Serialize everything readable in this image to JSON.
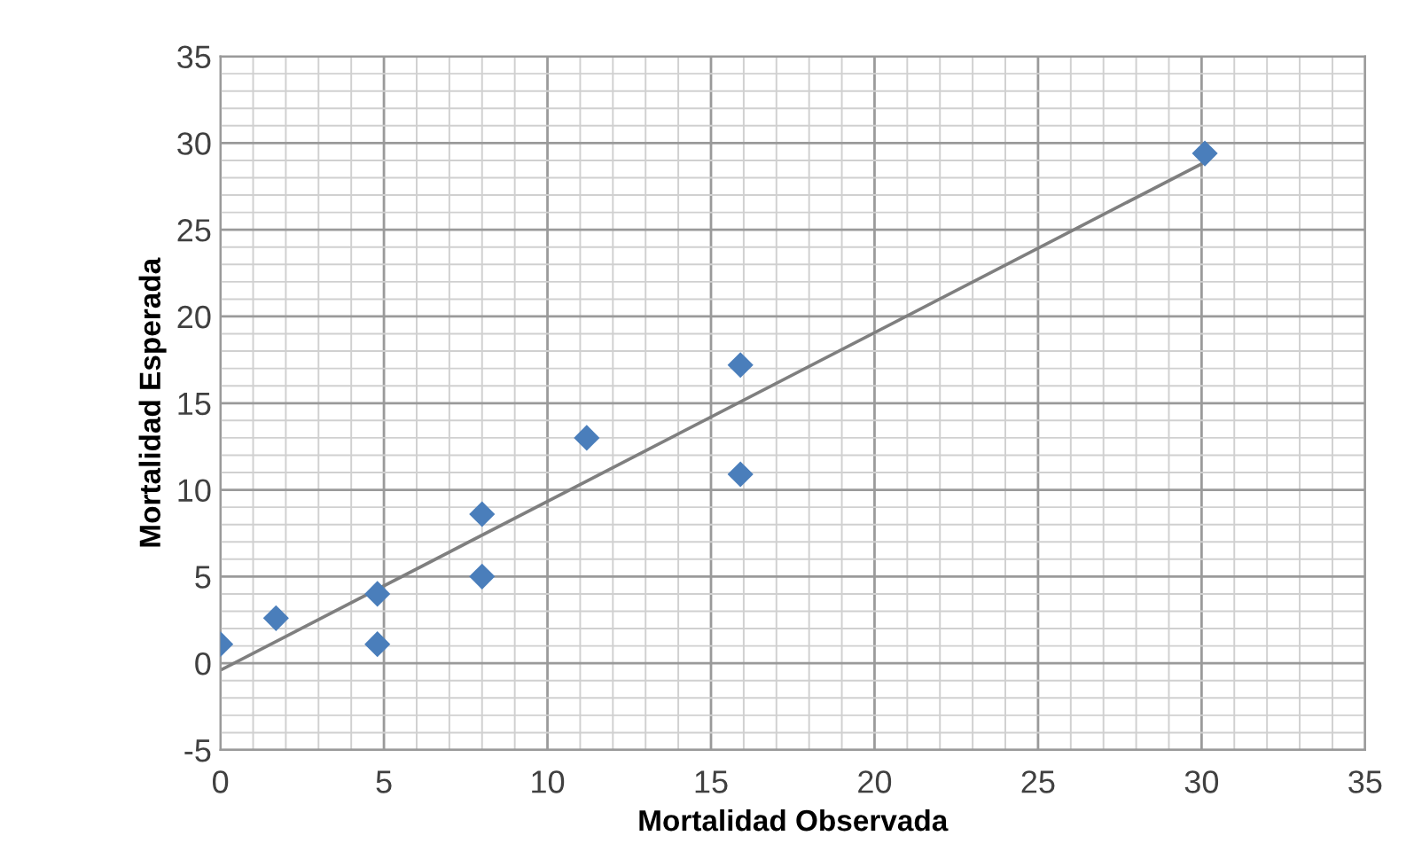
{
  "chart_data": {
    "type": "scatter",
    "xlabel": "Mortalidad Observada",
    "ylabel": "Mortalidad Esperada",
    "xlim": [
      0,
      35
    ],
    "ylim": [
      -5,
      35
    ],
    "xticks": [
      0,
      5,
      10,
      15,
      20,
      25,
      30,
      35
    ],
    "yticks": [
      -5,
      0,
      5,
      10,
      15,
      20,
      25,
      30,
      35
    ],
    "grid": true,
    "marker": "diamond",
    "series": [
      {
        "color": "#4a7ebb",
        "x": [
          0,
          1.7,
          4.8,
          4.8,
          8.0,
          8.0,
          11.2,
          15.9,
          15.9,
          30.1
        ],
        "values": [
          1.1,
          2.6,
          4.0,
          1.1,
          8.6,
          5.0,
          13.0,
          17.2,
          10.9,
          29.4
        ]
      },
      {
        "type": "line",
        "color": "#7f7f7f",
        "x": [
          0,
          30.1
        ],
        "values": [
          -0.4,
          28.9
        ],
        "marker": "none"
      }
    ]
  }
}
